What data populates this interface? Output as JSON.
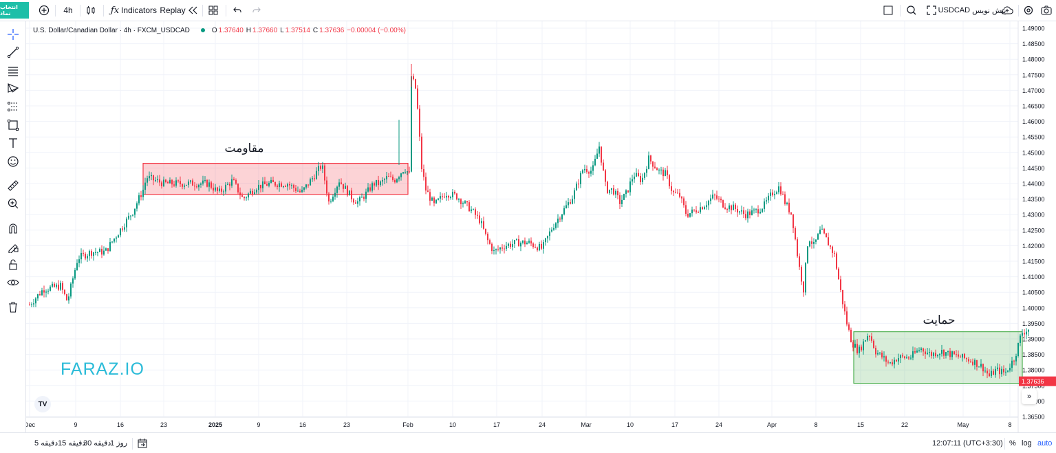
{
  "toolbar": {
    "brand_button": "انتخاب نماد",
    "interval": "4h",
    "indicators": "Indicators",
    "replay": "Replay",
    "symbol": "USDCAD",
    "preview_label": "پیش نویس",
    "icons": [
      "add-symbol-icon",
      "candles-icon",
      "fx-icon",
      "replay-icon",
      "templates-icon",
      "undo-icon",
      "redo-icon",
      "layout-icon",
      "search-icon",
      "fullscreen-icon",
      "cloud-icon",
      "settings-icon",
      "camera-icon"
    ]
  },
  "left_tools": [
    "crosshair-icon",
    "trendline-icon",
    "fib-icon",
    "pattern-icon",
    "projection-icon",
    "rectangle-icon",
    "text-icon",
    "emoji-icon",
    "ruler-icon",
    "zoom-icon",
    "magnet-icon",
    "lock-draw-icon",
    "lock-icon",
    "eye-icon",
    "trash-icon"
  ],
  "legend": {
    "title": "U.S. Dollar/Canadian Dollar · 4h · FXCM_USDCAD",
    "o_label": "O",
    "o": "1.37640",
    "h_label": "H",
    "h": "1.37660",
    "l_label": "L",
    "l": "1.37514",
    "c_label": "C",
    "c": "1.37636",
    "change": "−0.00004 (−0.00%)"
  },
  "watermark": "FARAZ.IO",
  "tv_logo": "TV",
  "bottom": {
    "ranges": [
      "5 دقیقه",
      "15 دقیقه",
      "30 دقیقه",
      "1 روز"
    ],
    "time": "12:07:11 (UTC+3:30)",
    "percent": "%",
    "log": "log",
    "auto": "auto"
  },
  "colors": {
    "up": "#089981",
    "down": "#f23645",
    "resistance_fill": "rgba(242,54,69,0.22)",
    "resistance_border": "#f23645",
    "support_fill": "rgba(76,175,80,0.22)",
    "support_border": "#4caf50",
    "accent": "#2962ff",
    "watermark": "#2bbbd8"
  },
  "chart_data": {
    "type": "candlestick",
    "y_ticks": [
      "1.49000",
      "1.48500",
      "1.48000",
      "1.47500",
      "1.47000",
      "1.46500",
      "1.46000",
      "1.45500",
      "1.45000",
      "1.44500",
      "1.44000",
      "1.43500",
      "1.43000",
      "1.42500",
      "1.42000",
      "1.41500",
      "1.41000",
      "1.40500",
      "1.40000",
      "1.39500",
      "1.39000",
      "1.38500",
      "1.38000",
      "1.37500",
      "1.37000",
      "1.36500"
    ],
    "ylim": [
      1.365,
      1.49
    ],
    "x_labels": [
      "Dec",
      "9",
      "16",
      "23",
      "2025",
      "9",
      "16",
      "23",
      "Feb",
      "10",
      "17",
      "24",
      "Mar",
      "10",
      "17",
      "24",
      "Apr",
      "8",
      "15",
      "22",
      "May",
      "8"
    ],
    "price_path": [
      [
        0,
        1.401
      ],
      [
        20,
        1.406
      ],
      [
        45,
        1.407
      ],
      [
        55,
        1.402
      ],
      [
        70,
        1.416
      ],
      [
        90,
        1.418
      ],
      [
        110,
        1.418
      ],
      [
        122,
        1.422
      ],
      [
        150,
        1.431
      ],
      [
        165,
        1.438
      ],
      [
        170,
        1.442
      ],
      [
        195,
        1.44
      ],
      [
        230,
        1.44
      ],
      [
        260,
        1.44
      ],
      [
        275,
        1.437
      ],
      [
        295,
        1.441
      ],
      [
        310,
        1.435
      ],
      [
        330,
        1.439
      ],
      [
        350,
        1.44
      ],
      [
        375,
        1.44
      ],
      [
        395,
        1.437
      ],
      [
        412,
        1.442
      ],
      [
        425,
        1.446
      ],
      [
        435,
        1.434
      ],
      [
        450,
        1.441
      ],
      [
        470,
        1.435
      ],
      [
        478,
        1.434
      ],
      [
        490,
        1.437
      ],
      [
        500,
        1.44
      ],
      [
        510,
        1.44
      ],
      [
        520,
        1.442
      ],
      [
        530,
        1.441
      ],
      [
        545,
        1.445
      ],
      [
        552,
        1.443
      ],
      [
        555,
        1.4745
      ],
      [
        562,
        1.47
      ],
      [
        570,
        1.445
      ],
      [
        576,
        1.438
      ],
      [
        588,
        1.433
      ],
      [
        605,
        1.437
      ],
      [
        620,
        1.436
      ],
      [
        640,
        1.432
      ],
      [
        655,
        1.428
      ],
      [
        665,
        1.422
      ],
      [
        675,
        1.418
      ],
      [
        690,
        1.42
      ],
      [
        710,
        1.421
      ],
      [
        725,
        1.421
      ],
      [
        745,
        1.419
      ],
      [
        760,
        1.426
      ],
      [
        775,
        1.431
      ],
      [
        790,
        1.436
      ],
      [
        805,
        1.445
      ],
      [
        818,
        1.444
      ],
      [
        828,
        1.452
      ],
      [
        838,
        1.438
      ],
      [
        848,
        1.438
      ],
      [
        858,
        1.434
      ],
      [
        868,
        1.437
      ],
      [
        878,
        1.443
      ],
      [
        890,
        1.441
      ],
      [
        900,
        1.448
      ],
      [
        915,
        1.444
      ],
      [
        925,
        1.443
      ],
      [
        935,
        1.437
      ],
      [
        945,
        1.436
      ],
      [
        955,
        1.43
      ],
      [
        965,
        1.431
      ],
      [
        980,
        1.433
      ],
      [
        995,
        1.436
      ],
      [
        1010,
        1.433
      ],
      [
        1025,
        1.432
      ],
      [
        1040,
        1.43
      ],
      [
        1055,
        1.431
      ],
      [
        1068,
        1.433
      ],
      [
        1080,
        1.437
      ],
      [
        1090,
        1.439
      ],
      [
        1098,
        1.434
      ],
      [
        1108,
        1.43
      ],
      [
        1118,
        1.414
      ],
      [
        1125,
        1.406
      ],
      [
        1132,
        1.423
      ],
      [
        1140,
        1.42
      ],
      [
        1150,
        1.425
      ],
      [
        1158,
        1.422
      ],
      [
        1170,
        1.417
      ],
      [
        1180,
        1.404
      ],
      [
        1188,
        1.395
      ],
      [
        1195,
        1.389
      ],
      [
        1205,
        1.386
      ],
      [
        1220,
        1.392
      ],
      [
        1230,
        1.386
      ],
      [
        1250,
        1.382
      ],
      [
        1262,
        1.384
      ],
      [
        1280,
        1.384
      ],
      [
        1295,
        1.387
      ],
      [
        1310,
        1.385
      ],
      [
        1325,
        1.386
      ],
      [
        1340,
        1.385
      ],
      [
        1355,
        1.384
      ],
      [
        1370,
        1.383
      ],
      [
        1385,
        1.381
      ],
      [
        1395,
        1.378
      ],
      [
        1405,
        1.38
      ],
      [
        1418,
        1.379
      ],
      [
        1432,
        1.384
      ],
      [
        1442,
        1.392
      ],
      [
        1452,
        1.393
      ]
    ],
    "resistance_zone": {
      "label": "مقاومت",
      "x_from": "Dec 20",
      "x_to": "Jan 31",
      "y_from": 1.4365,
      "y_to": 1.4465
    },
    "support_zone": {
      "label": "حمایت",
      "x_from": "Apr 14",
      "x_to": "May 8",
      "y_from": 1.3757,
      "y_to": 1.3923
    }
  }
}
